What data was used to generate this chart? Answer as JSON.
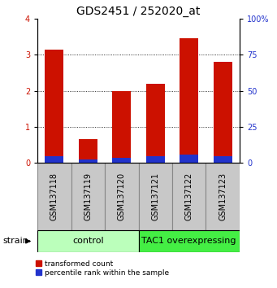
{
  "title": "GDS2451 / 252020_at",
  "samples": [
    "GSM137118",
    "GSM137119",
    "GSM137120",
    "GSM137121",
    "GSM137122",
    "GSM137123"
  ],
  "red_values": [
    3.15,
    0.65,
    2.0,
    2.2,
    3.45,
    2.8
  ],
  "blue_percentiles": [
    4.5,
    2.0,
    3.25,
    4.25,
    5.5,
    4.5
  ],
  "ylim_left": [
    0,
    4
  ],
  "ylim_right": [
    0,
    100
  ],
  "yticks_left": [
    0,
    1,
    2,
    3,
    4
  ],
  "yticks_right": [
    0,
    25,
    50,
    75,
    100
  ],
  "groups": [
    {
      "label": "control",
      "spans": [
        0,
        2
      ],
      "color": "#bbffbb"
    },
    {
      "label": "TAC1 overexpressing",
      "spans": [
        3,
        5
      ],
      "color": "#44ee44"
    }
  ],
  "strain_label": "strain",
  "legend_red": "transformed count",
  "legend_blue": "percentile rank within the sample",
  "bar_width": 0.55,
  "red_color": "#cc1100",
  "blue_color": "#2233cc",
  "title_fontsize": 10,
  "tick_fontsize": 7,
  "label_fontsize": 8,
  "group_fontsize": 8,
  "bar_group_bg": "#c8c8c8",
  "bar_group_border": "#888888"
}
